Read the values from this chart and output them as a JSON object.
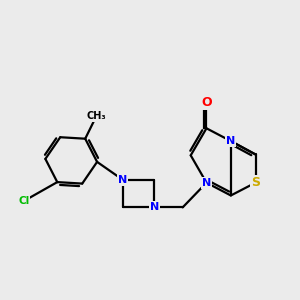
{
  "background_color": "#ebebeb",
  "atom_colors": {
    "N": "#0000ff",
    "O": "#ff0000",
    "S": "#ccaa00",
    "Cl": "#00bb00",
    "C": "#000000"
  },
  "figsize": [
    3.0,
    3.0
  ],
  "dpi": 100,
  "lw": 1.6,
  "fs": 8.0
}
